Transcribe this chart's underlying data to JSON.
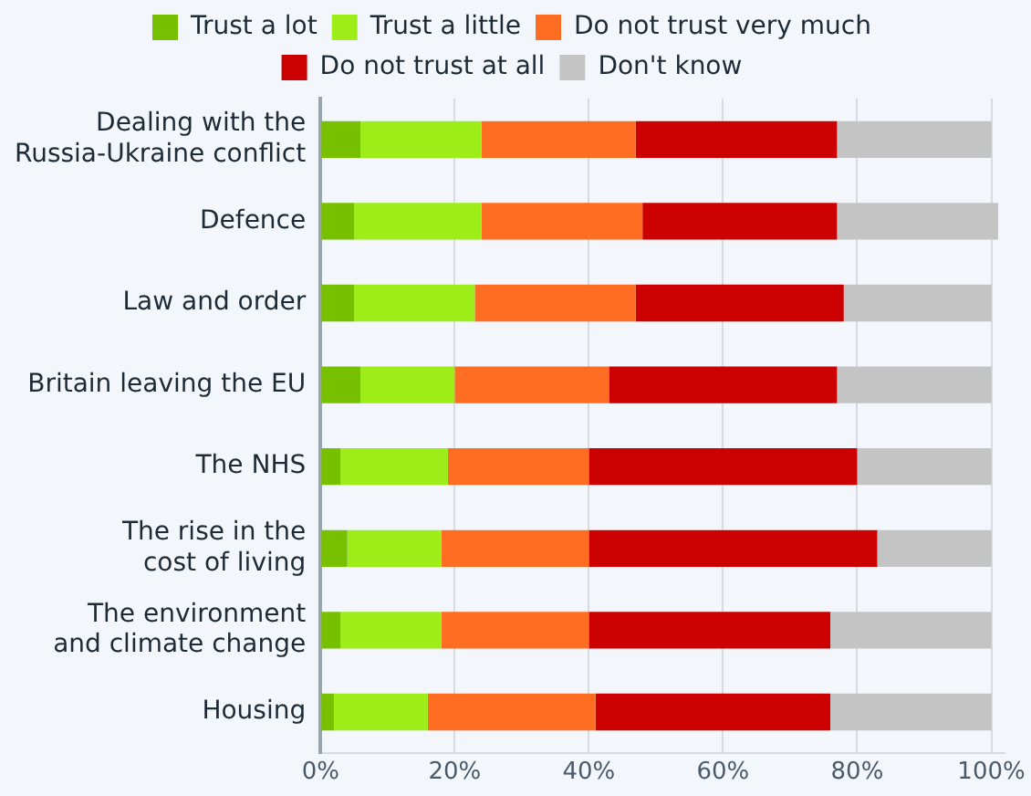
{
  "chart_data": {
    "type": "bar",
    "orientation": "horizontal",
    "stacked": true,
    "categories": [
      "Dealing with the Russia-Ukraine conflict",
      "Defence",
      "Law and order",
      "Britain leaving the EU",
      "The NHS",
      "The rise in the cost of living",
      "The environment and climate change",
      "Housing"
    ],
    "series": [
      {
        "name": "Trust a lot",
        "color": "#77c000",
        "values": [
          6,
          5,
          5,
          6,
          3,
          4,
          3,
          2
        ]
      },
      {
        "name": "Trust a little",
        "color": "#9ded19",
        "values": [
          18,
          19,
          18,
          14,
          16,
          14,
          15,
          14
        ]
      },
      {
        "name": "Do not trust very much",
        "color": "#ff6d22",
        "values": [
          23,
          24,
          24,
          23,
          21,
          22,
          22,
          25
        ]
      },
      {
        "name": "Do not trust at all",
        "color": "#cc0000",
        "values": [
          30,
          29,
          31,
          34,
          40,
          43,
          36,
          35
        ]
      },
      {
        "name": "Don't know",
        "color": "#c4c4c4",
        "values": [
          23,
          24,
          22,
          23,
          20,
          17,
          24,
          24
        ]
      }
    ],
    "xlim": [
      0,
      102
    ],
    "xticks": [
      {
        "value": 0,
        "label": "0%"
      },
      {
        "value": 20,
        "label": "20%"
      },
      {
        "value": 40,
        "label": "40%"
      },
      {
        "value": 60,
        "label": "60%"
      },
      {
        "value": 80,
        "label": "80%"
      },
      {
        "value": 100,
        "label": "100%"
      }
    ],
    "grid": "x",
    "legend": "top"
  }
}
